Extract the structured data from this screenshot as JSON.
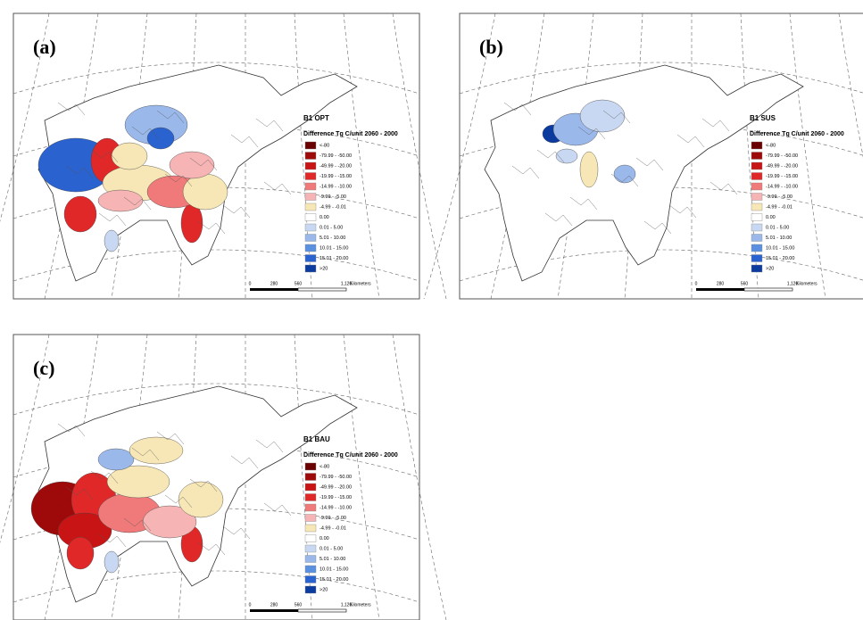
{
  "panels": [
    {
      "label": "(a)",
      "scenario": "B1 OPT"
    },
    {
      "label": "(b)",
      "scenario": "B1 SUS"
    },
    {
      "label": "(c)",
      "scenario": "B1 BAU"
    }
  ],
  "legend": {
    "title": "Difference Tg C/unit 2060 - 2000",
    "items": [
      {
        "label": "<-80",
        "color": "#6b0000"
      },
      {
        "label": "-79.99 - -50.00",
        "color": "#9e0a0a"
      },
      {
        "label": "-49.99 - -20.00",
        "color": "#c81414"
      },
      {
        "label": "-19.99 - -15.00",
        "color": "#e02828"
      },
      {
        "label": "-14.99 - -10.00",
        "color": "#f07a7a"
      },
      {
        "label": "-9.99 - -5.00",
        "color": "#f6b4b4"
      },
      {
        "label": "-4.99 - -0.01",
        "color": "#f7e7b6"
      },
      {
        "label": "0.00",
        "color": "#ffffff"
      },
      {
        "label": "0.01 - 5.00",
        "color": "#c9d8f2"
      },
      {
        "label": "5.01 - 10.00",
        "color": "#9bb8ea"
      },
      {
        "label": "10.01 - 15.00",
        "color": "#5b8fe0"
      },
      {
        "label": "15.01 - 20.00",
        "color": "#2a62cf"
      },
      {
        "label": ">20",
        "color": "#0b3b9e"
      }
    ]
  },
  "scale_bar": {
    "labels": [
      "0",
      "280",
      "560",
      "1,120"
    ],
    "unit": "Kilometers"
  }
}
